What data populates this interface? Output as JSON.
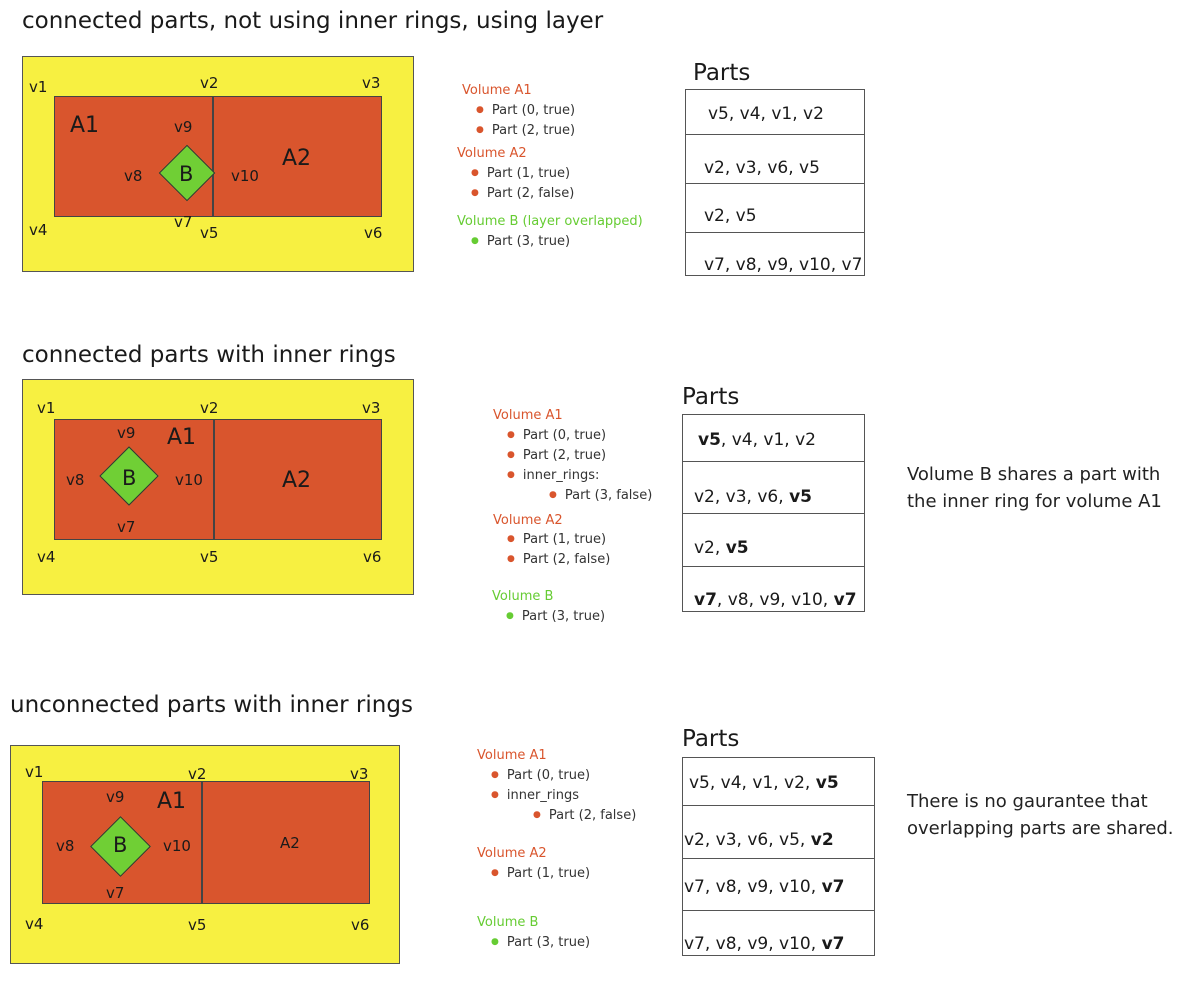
{
  "sections": [
    {
      "heading": "connected parts, not using inner rings, using layer",
      "vertices": {
        "v1": "v1",
        "v2": "v2",
        "v3": "v3",
        "v4": "v4",
        "v5": "v5",
        "v6": "v6",
        "v7": "v7",
        "v8": "v8",
        "v9": "v9",
        "v10": "v10"
      },
      "areas": {
        "a1": "A1",
        "a2": "A2",
        "b": "B"
      },
      "volumes": [
        {
          "title": "Volume A1",
          "items": [
            "Part (0, true)",
            "Part (2, true)"
          ]
        },
        {
          "title": "Volume A2",
          "items": [
            "Part (1, true)",
            "Part (2, false)"
          ]
        },
        {
          "title": "Volume B (layer overlapped)",
          "items": [
            "Part (3, true)"
          ]
        }
      ],
      "parts_title": "Parts",
      "parts_rows": [
        [
          {
            "t": "v5, v4, v1, v2",
            "b": false
          }
        ],
        [
          {
            "t": "v2, v3, v6, v5",
            "b": false
          }
        ],
        [
          {
            "t": "v2, v5",
            "b": false
          }
        ],
        [
          {
            "t": "v7, v8, v9, v10, v7",
            "b": false
          }
        ]
      ],
      "note": ""
    },
    {
      "heading": "connected parts with inner rings",
      "vertices": {
        "v1": "v1",
        "v2": "v2",
        "v3": "v3",
        "v4": "v4",
        "v5": "v5",
        "v6": "v6",
        "v7": "v7",
        "v8": "v8",
        "v9": "v9",
        "v10": "v10"
      },
      "areas": {
        "a1": "A1",
        "a2": "A2",
        "b": "B"
      },
      "volumes": [
        {
          "title": "Volume A1",
          "items": [
            "Part (0, true)",
            "Part (2, true)",
            "inner_rings:"
          ],
          "sub_items": [
            "Part (3, false)"
          ]
        },
        {
          "title": "Volume A2",
          "items": [
            "Part (1, true)",
            "Part (2, false)"
          ]
        },
        {
          "title": "Volume B",
          "items": [
            "Part (3, true)"
          ]
        }
      ],
      "parts_title": "Parts",
      "parts_rows": [
        [
          {
            "t": "v5",
            "b": true
          },
          {
            "t": ", v4, v1, v2",
            "b": false
          }
        ],
        [
          {
            "t": "v2, v3, v6, ",
            "b": false
          },
          {
            "t": "v5",
            "b": true
          }
        ],
        [
          {
            "t": "v2, ",
            "b": false
          },
          {
            "t": "v5",
            "b": true
          }
        ],
        [
          {
            "t": "v7",
            "b": true
          },
          {
            "t": ", v8, v9, v10, ",
            "b": false
          },
          {
            "t": "v7",
            "b": true
          }
        ]
      ],
      "note_lines": [
        "Volume B shares a part with",
        "the inner ring for volume A1"
      ]
    },
    {
      "heading": "unconnected parts with inner rings",
      "vertices": {
        "v1": "v1",
        "v2": "v2",
        "v3": "v3",
        "v4": "v4",
        "v5": "v5",
        "v6": "v6",
        "v7": "v7",
        "v8": "v8",
        "v9": "v9",
        "v10": "v10"
      },
      "areas": {
        "a1": "A1",
        "a2": "A2",
        "b": "B"
      },
      "volumes": [
        {
          "title": "Volume A1",
          "items": [
            "Part (0, true)",
            "inner_rings"
          ],
          "sub_items": [
            "Part (2, false)"
          ]
        },
        {
          "title": "Volume A2",
          "items": [
            "Part (1, true)"
          ]
        },
        {
          "title": "Volume B",
          "items": [
            "Part (3, true)"
          ]
        }
      ],
      "parts_title": "Parts",
      "parts_rows": [
        [
          {
            "t": "v5, v4, v1, v2, ",
            "b": false
          },
          {
            "t": "v5",
            "b": true
          }
        ],
        [
          {
            "t": "v2, v3, v6, v5, ",
            "b": false
          },
          {
            "t": "v2",
            "b": true
          }
        ],
        [
          {
            "t": "v7, v8, v9, v10, ",
            "b": false
          },
          {
            "t": "v7",
            "b": true
          }
        ],
        [
          {
            "t": "v7, v8, v9, v10, ",
            "b": false
          },
          {
            "t": "v7",
            "b": true
          }
        ]
      ],
      "note_lines": [
        "There is no gaurantee that",
        "overlapping parts are shared."
      ]
    }
  ]
}
